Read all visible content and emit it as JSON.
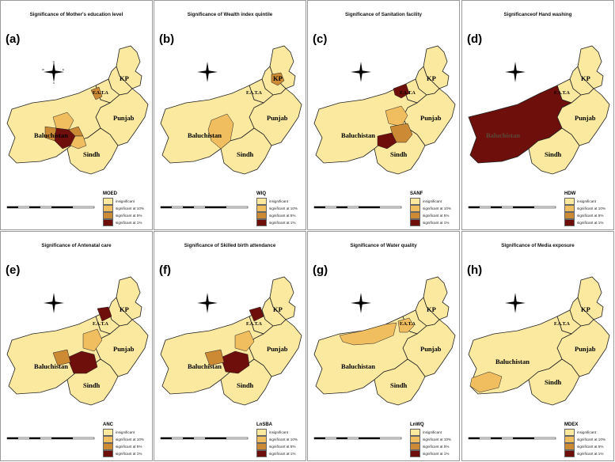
{
  "panels": [
    {
      "label": "(a)",
      "title": "Significance of Mother's education level",
      "legend_title": "MOED",
      "regions": {
        "kp": "insig",
        "fata": "insig",
        "punjab": "insig",
        "baluchistan": "insig",
        "sindh": "insig",
        "north": "insig",
        "b1": "sig10",
        "b2": "sig5",
        "b3": "sig1",
        "b4": "sig10",
        "b5": "sig5",
        "b6": "sig10"
      },
      "highlights": [
        "b1",
        "b2",
        "b3",
        "b4",
        "b5",
        "b6"
      ]
    },
    {
      "label": "(b)",
      "title": "Significance of Wealth index quintile",
      "legend_title": "WIQ",
      "highlights": [
        "w1",
        "w2"
      ]
    },
    {
      "label": "(c)",
      "title": "Significance of Sanitation facility",
      "legend_title": "SANF",
      "highlights": [
        "c1",
        "c2",
        "c3",
        "c4"
      ]
    },
    {
      "label": "(d)",
      "title": "Significanceof Hand washing",
      "legend_title": "HDW",
      "highlights": [
        "d1"
      ]
    },
    {
      "label": "(e)",
      "title": "Significance of Antenatal care",
      "legend_title": "ANC",
      "highlights": [
        "e1",
        "e2",
        "e3",
        "e4"
      ]
    },
    {
      "label": "(f)",
      "title": "Significance of Skilled birth attendance",
      "legend_title": "LnSBA",
      "highlights": [
        "f1",
        "f2",
        "f3",
        "f4"
      ]
    },
    {
      "label": "(g)",
      "title": "Significance of Water quality",
      "legend_title": "LnWQ",
      "highlights": [
        "g1",
        "g2"
      ]
    },
    {
      "label": "(h)",
      "title": "SIgnificance of Media exposure",
      "legend_title": "MDEX",
      "highlights": [
        "h1"
      ]
    }
  ],
  "legend_items": [
    "insignificant",
    "significant at 10%",
    "significant at 5%",
    "significant at 1%"
  ],
  "legend_items_alt": [
    "insignificant",
    "significant at 10%",
    "significant at 5%",
    "significant at 1%"
  ],
  "province_labels": {
    "kp": "KP",
    "fata": "F.A.T.A",
    "punjab": "Punjab",
    "baluchistan": "Baluchistan",
    "sindh": "Sindh"
  },
  "compass_letters": {
    "n": "N",
    "s": "S",
    "e": "E",
    "w": "W"
  },
  "colors": {
    "insignificant": "#fbe9a0",
    "sig10": "#f0bd5f",
    "sig5": "#cc8a34",
    "sig1": "#6e0f0b",
    "border": "#222222"
  }
}
